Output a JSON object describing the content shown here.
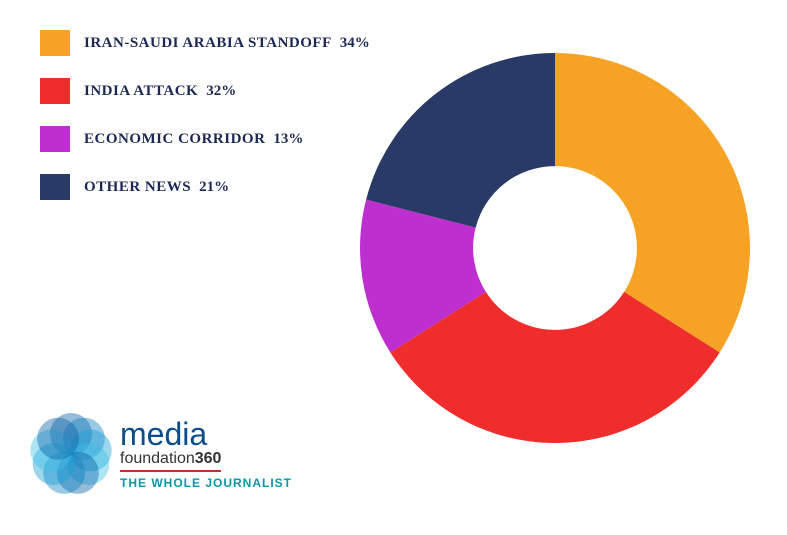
{
  "chart": {
    "type": "donut",
    "inner_radius_ratio": 0.42,
    "start_angle_deg": -90,
    "background_color": "#ffffff",
    "slices": [
      {
        "key": "iran",
        "label": "IRAN-SAUDI ARABIA STANDOFF",
        "value": 34,
        "color": "#f6a325"
      },
      {
        "key": "india",
        "label": "INDIA ATTACK",
        "value": 32,
        "color": "#ef2d2d"
      },
      {
        "key": "econ",
        "label": "ECONOMIC CORRIDOR",
        "value": 13,
        "color": "#be2fd0"
      },
      {
        "key": "other",
        "label": "OTHER NEWS",
        "value": 21,
        "color": "#2a3a66"
      }
    ]
  },
  "legend": {
    "font_family": "Georgia",
    "font_size_pt": 11,
    "font_weight": "bold",
    "text_color": "#1a2856",
    "swatch_w": 30,
    "swatch_h": 26
  },
  "logo": {
    "word1": "media",
    "word2_plain": "foundation",
    "word2_bold": "360",
    "tagline": "THE WHOLE JOURNALIST",
    "word1_color": "#0b4c8c",
    "word2_color": "#333333",
    "underline_color": "#c4302b",
    "tagline_color": "#0b97a8",
    "mark_colors": [
      "#0860a8",
      "#0b7ec2",
      "#12a0d6",
      "#3cc0e6"
    ]
  }
}
